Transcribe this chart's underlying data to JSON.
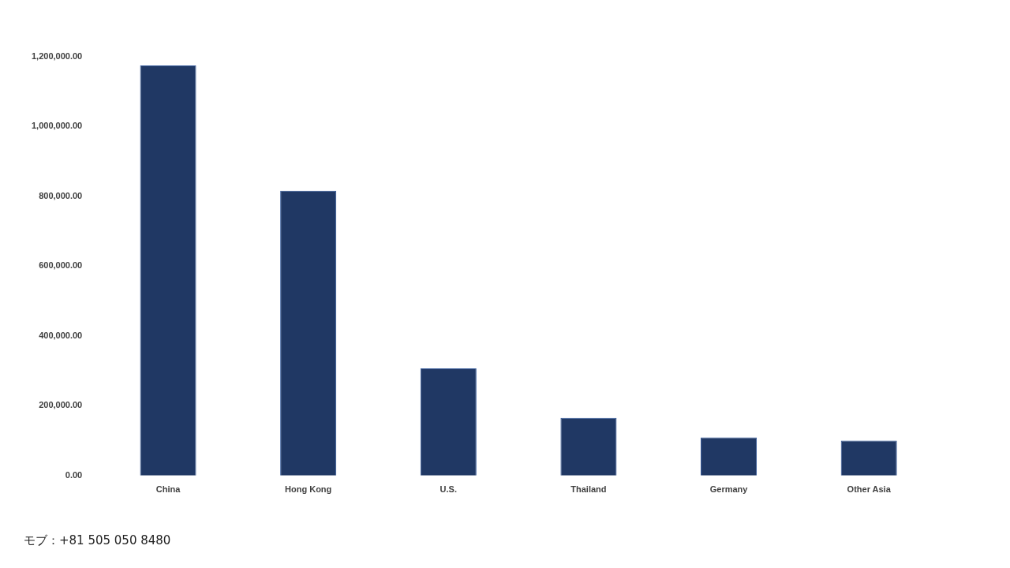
{
  "chart_data": {
    "type": "bar",
    "categories": [
      "China",
      "Hong Kong",
      "U.S.",
      "Thailand",
      "Germany",
      "Other Asia"
    ],
    "values": [
      1175000,
      816000,
      307000,
      165000,
      109000,
      100000
    ],
    "color": "#203864",
    "ylim": [
      0,
      1200000
    ],
    "yticks": [
      {
        "value": 0,
        "label": "0.00"
      },
      {
        "value": 200000,
        "label": "200,000.00"
      },
      {
        "value": 400000,
        "label": "400,000.00"
      },
      {
        "value": 600000,
        "label": "600,000.00"
      },
      {
        "value": 800000,
        "label": "800,000.00"
      },
      {
        "value": 1000000,
        "label": "1,000,000.00"
      },
      {
        "value": 1200000,
        "label": "1,200,000.00"
      }
    ],
    "grid": false,
    "legend": false,
    "annotations": [
      "モブ：+81 505 050 8480"
    ]
  }
}
